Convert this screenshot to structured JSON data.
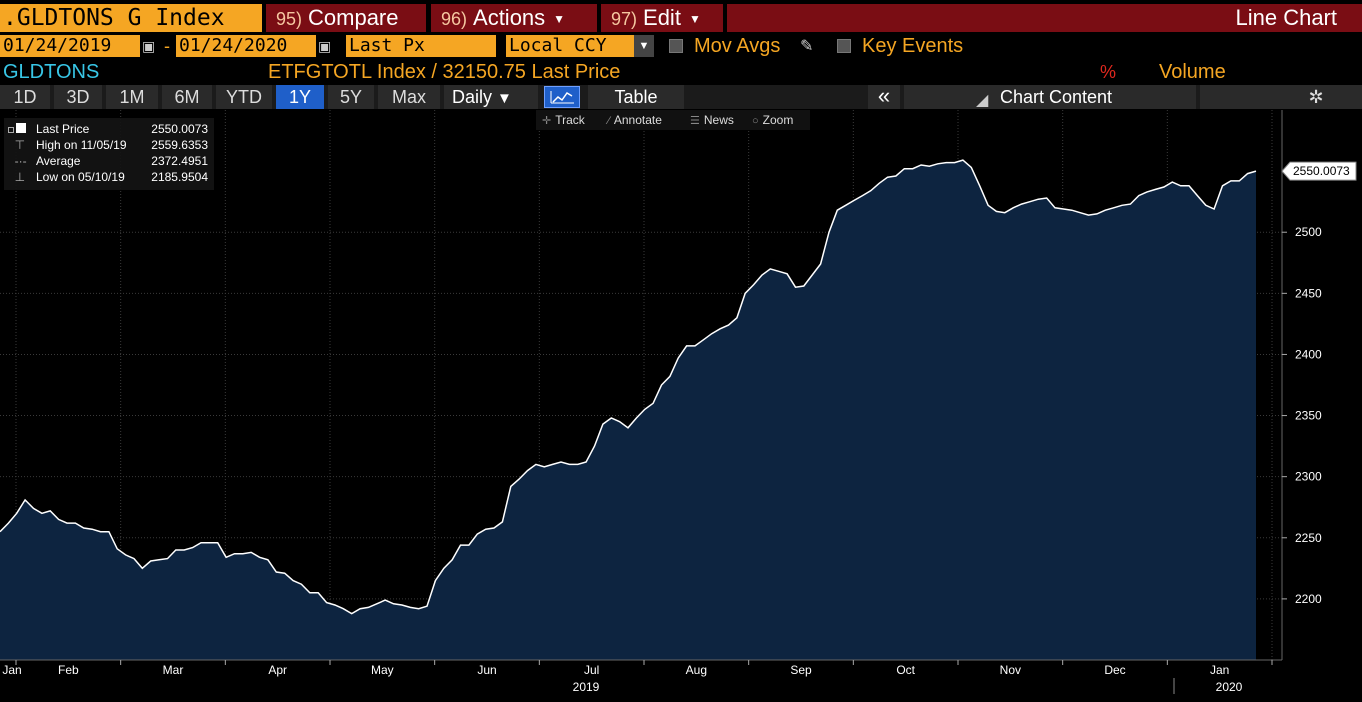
{
  "header": {
    "ticker": ".GLDTONS G Index",
    "compare": {
      "num": "95)",
      "label": "Compare"
    },
    "actions": {
      "num": "96)",
      "label": "Actions"
    },
    "edit": {
      "num": "97)",
      "label": "Edit"
    },
    "view_title": "Line Chart"
  },
  "controls": {
    "start_date": "01/24/2019",
    "end_date": "01/24/2020",
    "field": "Last Px",
    "currency": "Local CCY",
    "mov_avgs": "Mov Avgs",
    "key_events": "Key Events"
  },
  "security": {
    "name": "GLDTONS",
    "description": "ETFGTOTL Index / 32150.75 Last Price",
    "pct": "%",
    "volume": "Volume"
  },
  "periods": [
    {
      "label": "1D",
      "active": false
    },
    {
      "label": "3D",
      "active": false
    },
    {
      "label": "1M",
      "active": false
    },
    {
      "label": "6M",
      "active": false
    },
    {
      "label": "YTD",
      "active": false
    },
    {
      "label": "1Y",
      "active": true
    },
    {
      "label": "5Y",
      "active": false
    },
    {
      "label": "Max",
      "active": false
    }
  ],
  "toolbar": {
    "frequency": "Daily",
    "table": "Table",
    "chart_content": "Chart Content"
  },
  "tools": {
    "track": "Track",
    "annotate": "Annotate",
    "news": "News",
    "zoom": "Zoom"
  },
  "legend": [
    {
      "name": "Last Price",
      "value": "2550.0073"
    },
    {
      "name": "High on 11/05/19",
      "value": "2559.6353"
    },
    {
      "name": "Average",
      "value": "2372.4951"
    },
    {
      "name": "Low on 05/10/19",
      "value": "2185.9504"
    }
  ],
  "colors": {
    "accent": "#f5a623",
    "menu_bg": "#7a0d14",
    "active": "#1f5fc9",
    "area_fill": "#0d2440",
    "line": "#ffffff",
    "security_name": "#38c6e6"
  },
  "chart_data": {
    "type": "area",
    "title": "",
    "xlabel": "",
    "ylabel": "",
    "ylim": [
      2150,
      2600
    ],
    "y_ticks": [
      2200,
      2250,
      2300,
      2350,
      2400,
      2450,
      2500
    ],
    "last_price_label": "2550.0073",
    "x_ticks": [
      "Jan",
      "Feb",
      "Mar",
      "Apr",
      "May",
      "Jun",
      "Jul",
      "Aug",
      "Sep",
      "Oct",
      "Nov",
      "Dec",
      "Jan"
    ],
    "year_labels": [
      "2019",
      "2020"
    ],
    "grid": true,
    "series": [
      {
        "values": [
          2255,
          2262,
          2270,
          2281,
          2274,
          2270,
          2272,
          2265,
          2262,
          2262,
          2258,
          2257,
          2255,
          2255,
          2241,
          2236,
          2233,
          2225,
          2231,
          2232,
          2233,
          2240,
          2240,
          2242,
          2246,
          2246,
          2246,
          2234,
          2237,
          2237,
          2238,
          2234,
          2232,
          2222,
          2221,
          2215,
          2212,
          2205,
          2205,
          2197,
          2195,
          2192,
          2188,
          2192,
          2193,
          2196,
          2199,
          2196,
          2195,
          2193,
          2192,
          2194,
          2215,
          2225,
          2232,
          2244,
          2244,
          2253,
          2257,
          2258,
          2263,
          2292,
          2298,
          2305,
          2310,
          2308,
          2310,
          2312,
          2310,
          2310,
          2312,
          2325,
          2343,
          2348,
          2345,
          2340,
          2348,
          2355,
          2360,
          2375,
          2382,
          2397,
          2407,
          2407,
          2412,
          2417,
          2421,
          2424,
          2430,
          2450,
          2457,
          2465,
          2470,
          2468,
          2466,
          2455,
          2456,
          2465,
          2474,
          2500,
          2518,
          2522,
          2526,
          2530,
          2534,
          2540,
          2545,
          2546,
          2552,
          2552,
          2555,
          2554,
          2556,
          2557,
          2557,
          2559,
          2553,
          2538,
          2522,
          2517,
          2516,
          2520,
          2523,
          2525,
          2527,
          2528,
          2520,
          2519,
          2518,
          2516,
          2514,
          2515,
          2518,
          2520,
          2522,
          2523,
          2530,
          2533,
          2535,
          2537,
          2541,
          2538,
          2538,
          2530,
          2522,
          2519,
          2538,
          2542,
          2542,
          2548,
          2550
        ]
      }
    ]
  }
}
